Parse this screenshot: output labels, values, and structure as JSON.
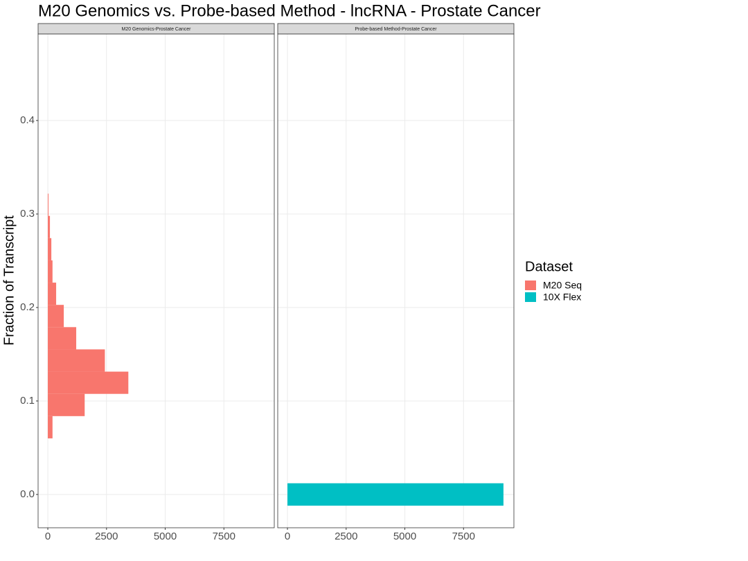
{
  "chart_data": {
    "type": "histogram",
    "orientation": "horizontal",
    "title": "M20 Genomics vs. Probe-based Method - lncRNA - Prostate Cancer",
    "y_label": "Fraction of Transcript",
    "legend_title": "Dataset",
    "xlim": [
      -414,
      9645
    ],
    "xticks": [
      0,
      2500,
      5000,
      7500
    ],
    "ylim": [
      -0.0356,
      0.4926
    ],
    "yticks": [
      {
        "value": 0,
        "label": "0.0"
      },
      0.1,
      0.2,
      0.3,
      0.4
    ],
    "grid": true,
    "panels": [
      {
        "title": "M20 Genomics-Prostate Cancer",
        "series": [
          {
            "name": "M20 Seq",
            "color": "#F8766D",
            "bins": [
              0.06,
              0.0838,
              0.1076,
              0.1314,
              0.1552,
              0.179,
              0.2028,
              0.2266,
              0.2504,
              0.2742,
              0.298,
              0.3218
            ],
            "values": [
              200,
              1570,
              3430,
              2430,
              1210,
              680,
              355,
              200,
              150,
              90,
              30
            ]
          }
        ]
      },
      {
        "title": "Probe-based Method-Prostate Cancer",
        "series": [
          {
            "name": "10X Flex",
            "color": "#00BFC4",
            "bins": [
              -0.012,
              0.012
            ],
            "values": [
              9200
            ]
          }
        ]
      }
    ]
  }
}
